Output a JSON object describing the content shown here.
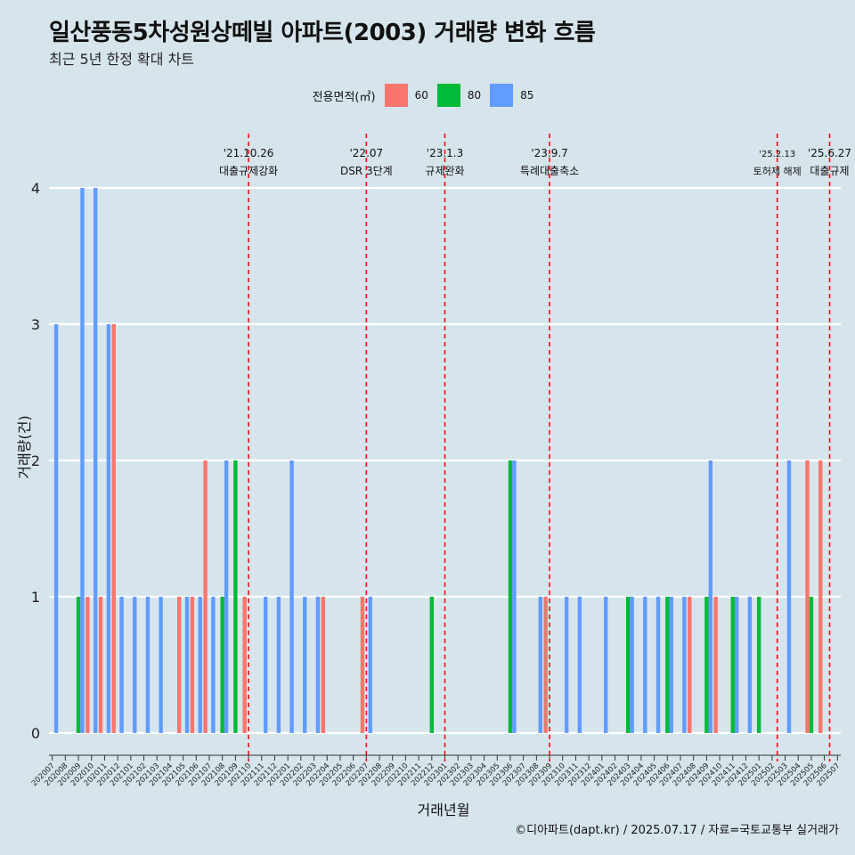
{
  "title": "일산풍동5차성원상떼빌 아파트(2003) 거래량 변화 흐름",
  "subtitle": "최근 5년 한정 확대 차트",
  "caption": "©디아파트(dapt.kr) / 2025.07.17 / 자료=국토교통부 실거래가",
  "colors": {
    "60": "#f8766d",
    "80": "#00ba38",
    "85": "#619cff",
    "vline": "#ee1111",
    "background": "#d6e4eb",
    "grid": "#ffffff"
  },
  "chart_data": {
    "type": "bar",
    "xlabel": "거래년월",
    "ylabel": "거래량(건)",
    "ylim": [
      0,
      4
    ],
    "yticks": [
      0,
      1,
      2,
      3,
      4
    ],
    "legend_title": "전용면적(㎡)",
    "legend_position": "top",
    "categories": [
      "202007",
      "202008",
      "202009",
      "202010",
      "202011",
      "202012",
      "202101",
      "202102",
      "202103",
      "202104",
      "202105",
      "202106",
      "202107",
      "202108",
      "202109",
      "202110",
      "202111",
      "202112",
      "202201",
      "202202",
      "202203",
      "202204",
      "202205",
      "202206",
      "202207",
      "202208",
      "202209",
      "202210",
      "202211",
      "202212",
      "202301",
      "202302",
      "202303",
      "202304",
      "202305",
      "202306",
      "202307",
      "202308",
      "202309",
      "202310",
      "202311",
      "202312",
      "202401",
      "202402",
      "202403",
      "202404",
      "202405",
      "202406",
      "202407",
      "202408",
      "202409",
      "202410",
      "202411",
      "202412",
      "202501",
      "202502",
      "202503",
      "202504",
      "202505",
      "202506",
      "202507"
    ],
    "series": [
      {
        "name": "60",
        "values": [
          0,
          0,
          0,
          1,
          1,
          3,
          0,
          0,
          0,
          0,
          1,
          1,
          2,
          0,
          0,
          1,
          0,
          0,
          0,
          0,
          0,
          1,
          0,
          0,
          1,
          0,
          0,
          0,
          0,
          0,
          0,
          0,
          0,
          0,
          0,
          0,
          0,
          0,
          1,
          0,
          0,
          0,
          0,
          0,
          0,
          0,
          0,
          0,
          0,
          1,
          0,
          1,
          0,
          0,
          0,
          0,
          0,
          0,
          2,
          2,
          0
        ]
      },
      {
        "name": "80",
        "values": [
          0,
          0,
          1,
          0,
          0,
          0,
          0,
          0,
          0,
          0,
          0,
          0,
          0,
          1,
          2,
          0,
          0,
          0,
          0,
          0,
          0,
          0,
          0,
          0,
          0,
          0,
          0,
          0,
          0,
          1,
          0,
          0,
          0,
          0,
          0,
          2,
          0,
          0,
          0,
          0,
          0,
          0,
          0,
          0,
          1,
          0,
          0,
          1,
          0,
          0,
          1,
          0,
          1,
          0,
          1,
          0,
          0,
          0,
          1,
          0,
          0
        ]
      },
      {
        "name": "85",
        "values": [
          3,
          0,
          4,
          4,
          3,
          1,
          1,
          1,
          1,
          0,
          1,
          1,
          1,
          2,
          0,
          0,
          1,
          1,
          2,
          1,
          1,
          0,
          0,
          0,
          1,
          0,
          0,
          0,
          0,
          0,
          0,
          0,
          0,
          0,
          0,
          2,
          0,
          1,
          0,
          1,
          1,
          0,
          1,
          0,
          1,
          1,
          1,
          1,
          1,
          0,
          2,
          0,
          1,
          1,
          0,
          0,
          2,
          0,
          0,
          0,
          0
        ]
      }
    ],
    "annotations": [
      {
        "x": 15.0,
        "date": "'21.10.26",
        "text": "대출규제강화"
      },
      {
        "x": 24.0,
        "date": "'22.07",
        "text": "DSR 3단계"
      },
      {
        "x": 30.0,
        "date": "'23.1.3",
        "text": "규제완화"
      },
      {
        "x": 38.0,
        "date": "'23.9.7",
        "text": "특례대출축소"
      },
      {
        "x": 55.4,
        "date": "'25.2.13",
        "text": "토허제 해제"
      },
      {
        "x": 59.4,
        "date": "'25.6.27",
        "text": "대출규제"
      }
    ]
  }
}
